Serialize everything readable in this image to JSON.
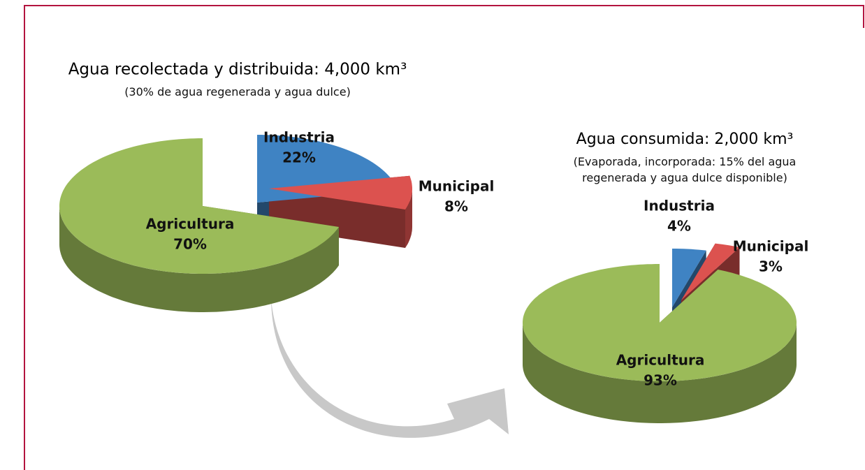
{
  "chart_data": [
    {
      "type": "pie",
      "title": "Agua recolectada y distribuida: 4,000 km³",
      "subtitle": "(30% de agua regenerada y agua dulce)",
      "categories": [
        "Industria",
        "Municipal",
        "Agricultura"
      ],
      "values": [
        22,
        8,
        70
      ],
      "value_labels": [
        "22%",
        "8%",
        "70%"
      ],
      "colors": [
        "#3f83c3",
        "#dc524f",
        "#9bbb59"
      ]
    },
    {
      "type": "pie",
      "title": "Agua consumida: 2,000 km³",
      "subtitle": "(Evaporada, incorporada: 15% del agua regenerada y agua dulce disponible)",
      "categories": [
        "Industria",
        "Municipal",
        "Agricultura"
      ],
      "values": [
        4,
        3,
        93
      ],
      "value_labels": [
        "4%",
        "3%",
        "93%"
      ],
      "colors": [
        "#3f83c3",
        "#dc524f",
        "#9bbb59"
      ]
    }
  ]
}
